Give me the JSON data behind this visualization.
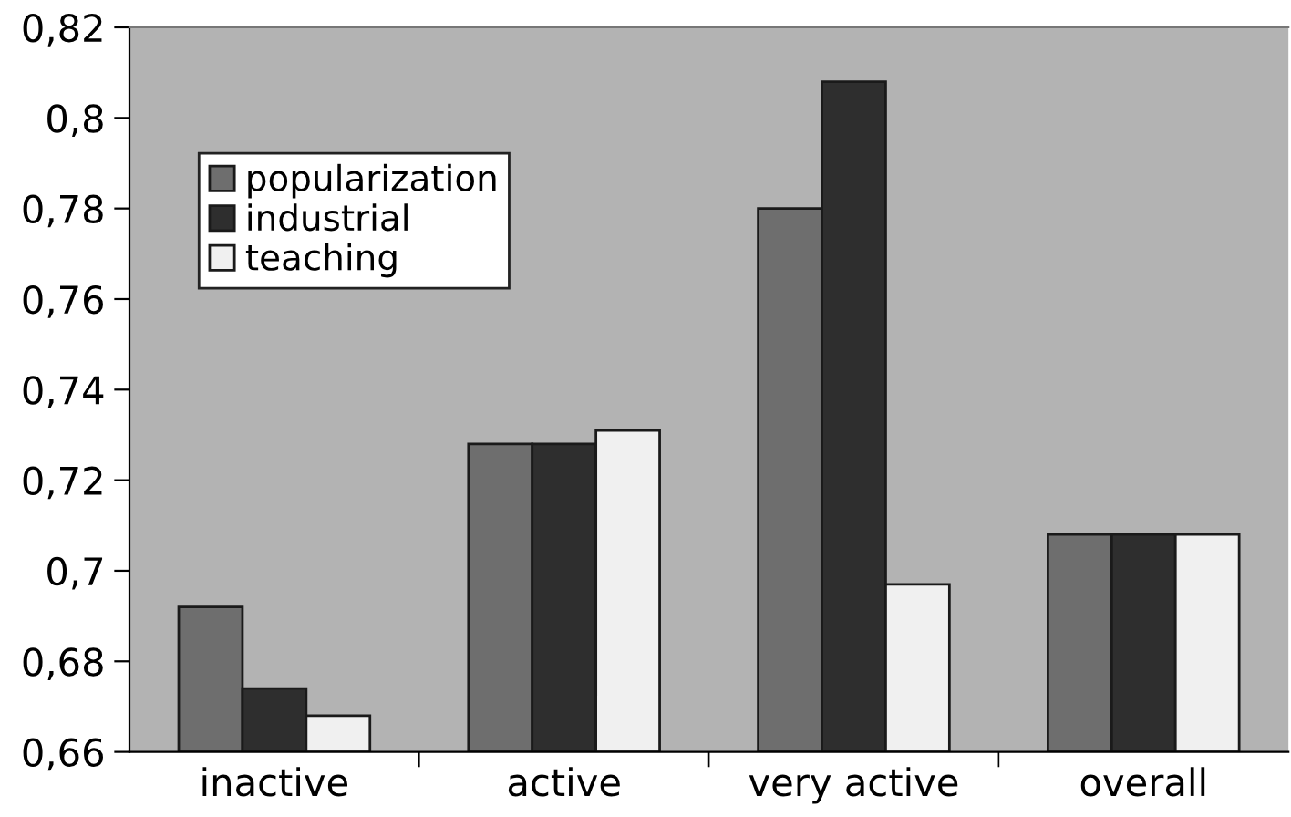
{
  "chart_data": {
    "type": "bar",
    "categories": [
      "inactive",
      "active",
      "very active",
      "overall"
    ],
    "series": [
      {
        "name": "popularization",
        "color": "#6e6e6e",
        "values": [
          0.692,
          0.728,
          0.78,
          0.708
        ]
      },
      {
        "name": "industrial",
        "color": "#2e2e2e",
        "values": [
          0.674,
          0.728,
          0.808,
          0.708
        ]
      },
      {
        "name": "teaching",
        "color": "#f0f0f0",
        "values": [
          0.668,
          0.731,
          0.697,
          0.708
        ]
      }
    ],
    "ylim": [
      0.66,
      0.82
    ],
    "yticks": [
      {
        "value": 0.66,
        "label": "0,66"
      },
      {
        "value": 0.68,
        "label": "0,68"
      },
      {
        "value": 0.7,
        "label": "0,7"
      },
      {
        "value": 0.72,
        "label": "0,72"
      },
      {
        "value": 0.74,
        "label": "0,74"
      },
      {
        "value": 0.76,
        "label": "0,76"
      },
      {
        "value": 0.78,
        "label": "0,78"
      },
      {
        "value": 0.8,
        "label": "0,8"
      },
      {
        "value": 0.82,
        "label": "0,82"
      }
    ],
    "grid": false,
    "legend": "top left"
  }
}
